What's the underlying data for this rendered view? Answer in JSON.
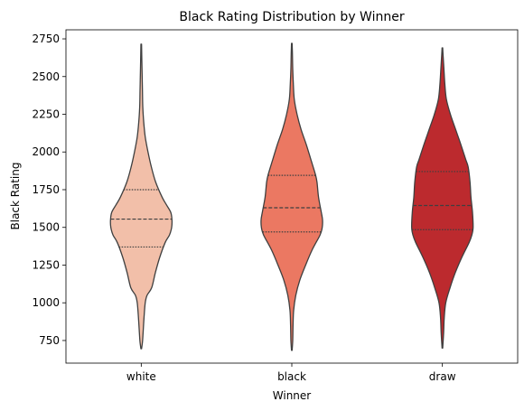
{
  "chart_data": {
    "type": "violin",
    "title": "Black Rating Distribution by Winner",
    "xlabel": "Winner",
    "ylabel": "Black Rating",
    "categories": [
      "white",
      "black",
      "draw"
    ],
    "ylim": [
      600,
      2810
    ],
    "yticks": [
      750,
      1000,
      1250,
      1500,
      1750,
      2000,
      2250,
      2500,
      2750
    ],
    "colors": [
      "#f2bfa9",
      "#eb7862",
      "#bc2a2e"
    ],
    "inner": "quartile",
    "series": [
      {
        "category": "white",
        "min": 695,
        "max": 2715,
        "quartiles": [
          1370,
          1555,
          1750
        ],
        "profile": [
          [
            695,
            0.01
          ],
          [
            740,
            0.04
          ],
          [
            800,
            0.06
          ],
          [
            900,
            0.09
          ],
          [
            1000,
            0.13
          ],
          [
            1050,
            0.19
          ],
          [
            1100,
            0.34
          ],
          [
            1200,
            0.46
          ],
          [
            1300,
            0.6
          ],
          [
            1400,
            0.78
          ],
          [
            1450,
            0.92
          ],
          [
            1500,
            0.99
          ],
          [
            1550,
            1.0
          ],
          [
            1600,
            0.96
          ],
          [
            1650,
            0.82
          ],
          [
            1700,
            0.68
          ],
          [
            1800,
            0.47
          ],
          [
            1900,
            0.33
          ],
          [
            2000,
            0.22
          ],
          [
            2100,
            0.13
          ],
          [
            2200,
            0.08
          ],
          [
            2300,
            0.05
          ],
          [
            2400,
            0.04
          ],
          [
            2500,
            0.03
          ],
          [
            2600,
            0.02
          ],
          [
            2715,
            0.01
          ]
        ]
      },
      {
        "category": "black",
        "min": 685,
        "max": 2720,
        "quartiles": [
          1470,
          1630,
          1845
        ],
        "profile": [
          [
            685,
            0.01
          ],
          [
            750,
            0.03
          ],
          [
            850,
            0.04
          ],
          [
            950,
            0.06
          ],
          [
            1050,
            0.13
          ],
          [
            1150,
            0.26
          ],
          [
            1250,
            0.45
          ],
          [
            1350,
            0.66
          ],
          [
            1450,
            0.92
          ],
          [
            1500,
            0.99
          ],
          [
            1550,
            1.0
          ],
          [
            1600,
            0.96
          ],
          [
            1700,
            0.87
          ],
          [
            1800,
            0.82
          ],
          [
            1850,
            0.77
          ],
          [
            1950,
            0.62
          ],
          [
            2050,
            0.47
          ],
          [
            2150,
            0.3
          ],
          [
            2250,
            0.17
          ],
          [
            2350,
            0.08
          ],
          [
            2450,
            0.05
          ],
          [
            2550,
            0.03
          ],
          [
            2650,
            0.02
          ],
          [
            2720,
            0.01
          ]
        ]
      },
      {
        "category": "draw",
        "min": 700,
        "max": 2690,
        "quartiles": [
          1485,
          1645,
          1870
        ],
        "profile": [
          [
            700,
            0.01
          ],
          [
            800,
            0.04
          ],
          [
            900,
            0.06
          ],
          [
            1000,
            0.11
          ],
          [
            1100,
            0.25
          ],
          [
            1200,
            0.42
          ],
          [
            1300,
            0.63
          ],
          [
            1400,
            0.87
          ],
          [
            1450,
            0.96
          ],
          [
            1500,
            1.0
          ],
          [
            1600,
            0.98
          ],
          [
            1700,
            0.93
          ],
          [
            1800,
            0.9
          ],
          [
            1900,
            0.84
          ],
          [
            1950,
            0.76
          ],
          [
            2050,
            0.6
          ],
          [
            2150,
            0.43
          ],
          [
            2250,
            0.26
          ],
          [
            2350,
            0.13
          ],
          [
            2450,
            0.08
          ],
          [
            2550,
            0.05
          ],
          [
            2650,
            0.02
          ],
          [
            2690,
            0.01
          ]
        ]
      }
    ]
  }
}
